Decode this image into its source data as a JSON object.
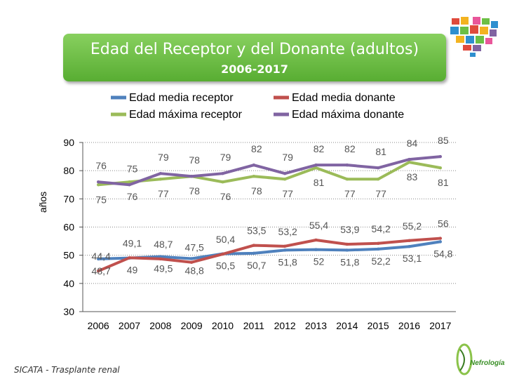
{
  "header": {
    "title": "Edad del Receptor y del Donante (adultos)",
    "subtitle": "2006-2017"
  },
  "footer": {
    "source": "SICATA - Trasplante renal"
  },
  "logos": {
    "heart": "heart-mosaic-logo",
    "nefrologia": "Nefrología"
  },
  "chart_data": {
    "type": "line",
    "title": "Edad del Receptor y del Donante (adultos)",
    "subtitle": "2006-2017",
    "ylabel": "años",
    "xlabel": "",
    "ylim": [
      30,
      90
    ],
    "yticks": [
      "30",
      "40",
      "50",
      "60",
      "70",
      "80",
      "90"
    ],
    "categories": [
      "2006",
      "2007",
      "2008",
      "2009",
      "2010",
      "2011",
      "2012",
      "2013",
      "2014",
      "2015",
      "2016",
      "2017"
    ],
    "grid": "horizontal dotted",
    "legend_position": "top",
    "series": [
      {
        "name": "Edad media receptor",
        "color": "#4f81bd",
        "values": [
          48.7,
          49,
          49.5,
          48.8,
          50.5,
          50.7,
          51.8,
          52,
          51.8,
          52.2,
          53.1,
          54.8
        ],
        "labels": [
          "48,7",
          "49",
          "49,5",
          "48,8",
          "50,5",
          "50,7",
          "51,8",
          "52",
          "51,8",
          "52,2",
          "53,1",
          "54,8"
        ]
      },
      {
        "name": "Edad media donante",
        "color": "#c0504d",
        "values": [
          44.4,
          49.1,
          48.7,
          47.5,
          50.4,
          53.5,
          53.2,
          55.4,
          53.9,
          54.2,
          55.2,
          56
        ],
        "labels": [
          "44,4",
          "49,1",
          "48,7",
          "47,5",
          "50,4",
          "53,5",
          "53,2",
          "55,4",
          "53,9",
          "54,2",
          "55,2",
          "56"
        ]
      },
      {
        "name": "Edad máxima receptor",
        "color": "#9bbb59",
        "values": [
          75,
          76,
          77,
          78,
          76,
          78,
          77,
          81,
          77,
          77,
          83,
          81
        ],
        "labels": [
          "75",
          "76",
          "77",
          "78",
          "76",
          "78",
          "77",
          "81",
          "77",
          "77",
          "83",
          "81"
        ]
      },
      {
        "name": "Edad máxima donante",
        "color": "#8064a2",
        "values": [
          76,
          75,
          79,
          78,
          79,
          82,
          79,
          82,
          82,
          81,
          84,
          85
        ],
        "labels": [
          "76",
          "75",
          "79",
          "78",
          "79",
          "82",
          "79",
          "82",
          "82",
          "81",
          "84",
          "85"
        ]
      }
    ]
  }
}
